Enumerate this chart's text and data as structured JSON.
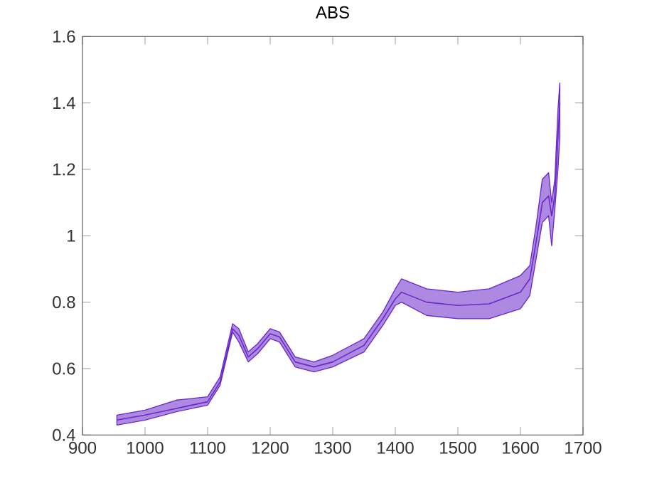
{
  "chart_data": {
    "type": "line",
    "title": "ABS",
    "x": [
      955,
      1000,
      1050,
      1100,
      1120,
      1140,
      1150,
      1165,
      1180,
      1200,
      1215,
      1240,
      1270,
      1300,
      1350,
      1380,
      1400,
      1410,
      1450,
      1500,
      1550,
      1600,
      1615,
      1625,
      1635,
      1645,
      1650,
      1655,
      1660,
      1663
    ],
    "series": [
      {
        "color": "#6a28c8",
        "values": [
          0.445,
          0.46,
          0.48,
          0.5,
          0.56,
          0.72,
          0.7,
          0.635,
          0.66,
          0.705,
          0.695,
          0.62,
          0.605,
          0.62,
          0.67,
          0.75,
          0.81,
          0.83,
          0.8,
          0.79,
          0.795,
          0.83,
          0.87,
          0.98,
          1.1,
          1.12,
          1.06,
          1.12,
          1.3,
          1.4
        ],
        "lower": [
          0.43,
          0.445,
          0.47,
          0.49,
          0.55,
          0.71,
          0.68,
          0.62,
          0.645,
          0.69,
          0.68,
          0.605,
          0.59,
          0.605,
          0.65,
          0.73,
          0.79,
          0.8,
          0.76,
          0.75,
          0.75,
          0.78,
          0.82,
          0.93,
          1.04,
          1.06,
          0.97,
          1.08,
          1.2,
          1.3
        ],
        "upper": [
          0.46,
          0.475,
          0.505,
          0.515,
          0.575,
          0.735,
          0.72,
          0.65,
          0.675,
          0.72,
          0.71,
          0.635,
          0.62,
          0.64,
          0.69,
          0.77,
          0.84,
          0.87,
          0.84,
          0.83,
          0.84,
          0.88,
          0.91,
          1.03,
          1.17,
          1.19,
          1.1,
          1.17,
          1.38,
          1.46
        ]
      }
    ],
    "xlim": [
      900,
      1700
    ],
    "xticks": [
      900,
      1000,
      1100,
      1200,
      1300,
      1400,
      1500,
      1600,
      1700
    ],
    "ylim": [
      0.4,
      1.6
    ],
    "yticks": [
      0.4,
      0.6,
      0.8,
      1,
      1.2,
      1.4,
      1.6
    ],
    "grid": false
  }
}
